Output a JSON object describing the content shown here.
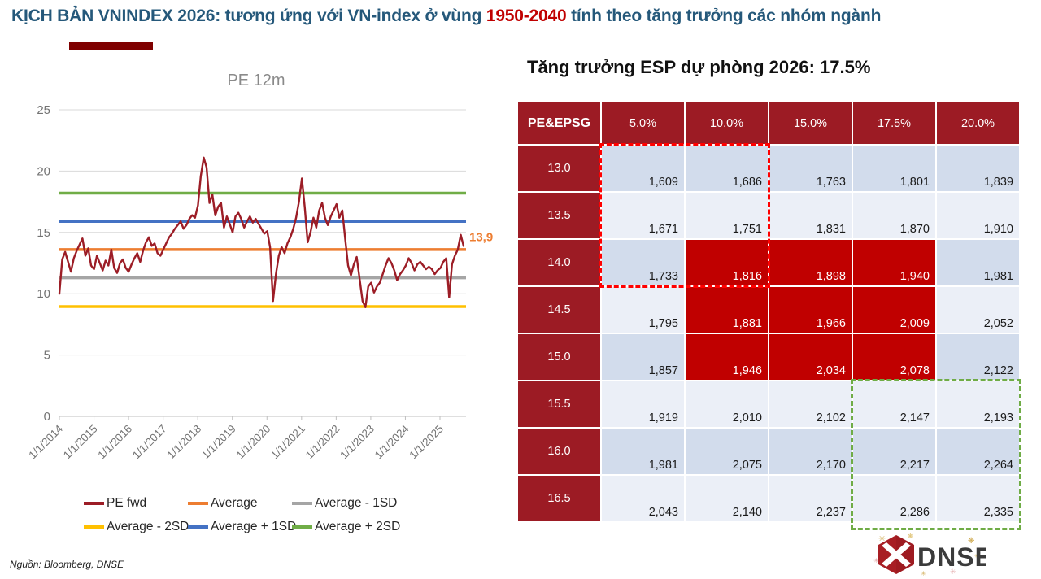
{
  "colors": {
    "title_navy": "#25587A",
    "accent_red": "#C00000",
    "maroon_bar": "#7F0000",
    "table_header_bg": "#9C1B24",
    "table_highlight_bg": "#C00000",
    "row_dark": "#D2DCEC",
    "row_light": "#EBEFF7",
    "red_dash": "#FF0000",
    "green_dash": "#6FAC46"
  },
  "page_title": {
    "part1": "KỊCH BẢN VNINDEX 2026: tương ứng với VN-index ở vùng ",
    "highlight": "1950-2040",
    "part2": " tính theo tăng trưởng các nhóm ngành"
  },
  "chart_data": {
    "type": "line",
    "title": "PE 12m",
    "ylim": [
      0,
      25
    ],
    "y_ticks": [
      0,
      5,
      10,
      15,
      20,
      25
    ],
    "grid": true,
    "legend_position": "bottom",
    "x_tick_labels": [
      "1/1/2014",
      "1/1/2015",
      "1/1/2016",
      "1/1/2017",
      "1/1/2018",
      "1/1/2019",
      "1/1/2020",
      "1/1/2021",
      "1/1/2022",
      "1/1/2023",
      "1/1/2024",
      "1/1/2025"
    ],
    "pe_series": {
      "name": "PE fwd",
      "color": "#9C1D26",
      "start": "1/1/2014",
      "interval": "monthly",
      "values": [
        10.0,
        12.8,
        13.4,
        12.6,
        11.8,
        12.9,
        13.5,
        14.0,
        14.5,
        13.1,
        13.7,
        12.3,
        12.0,
        13.1,
        12.5,
        11.9,
        12.7,
        12.3,
        13.6,
        12.1,
        11.7,
        12.5,
        12.8,
        12.1,
        11.8,
        12.4,
        12.9,
        13.3,
        12.6,
        13.5,
        14.2,
        14.6,
        13.9,
        14.1,
        13.3,
        13.1,
        13.6,
        14.1,
        14.6,
        14.9,
        15.3,
        15.6,
        15.9,
        15.3,
        15.6,
        16.1,
        16.4,
        16.2,
        17.2,
        19.6,
        21.1,
        20.3,
        17.4,
        18.1,
        16.4,
        17.1,
        17.4,
        15.4,
        16.3,
        15.7,
        15.0,
        16.3,
        16.6,
        16.1,
        15.4,
        15.9,
        16.3,
        15.8,
        16.1,
        15.7,
        15.3,
        14.9,
        15.1,
        13.8,
        9.4,
        11.6,
        13.1,
        13.8,
        13.3,
        14.1,
        14.6,
        15.3,
        16.2,
        17.5,
        19.4,
        17.0,
        14.2,
        15.0,
        16.2,
        15.4,
        16.8,
        17.4,
        16.2,
        15.6,
        16.3,
        16.8,
        17.3,
        16.2,
        16.8,
        14.5,
        12.3,
        11.5,
        12.4,
        13.0,
        11.2,
        9.4,
        8.9,
        10.6,
        10.9,
        10.1,
        10.6,
        10.9,
        11.6,
        12.3,
        12.9,
        12.5,
        11.9,
        11.1,
        11.6,
        11.9,
        12.3,
        12.9,
        12.5,
        11.9,
        12.4,
        12.6,
        12.3,
        12.0,
        12.2,
        12.0,
        11.6,
        11.9,
        12.1,
        12.6,
        12.9,
        9.7,
        12.4,
        13.1,
        13.6,
        14.8,
        13.9
      ]
    },
    "reference_lines": [
      {
        "name": "Average",
        "color": "#ED7D31",
        "value": 13.6
      },
      {
        "name": "Average - 1SD",
        "color": "#A5A5A5",
        "value": 11.3
      },
      {
        "name": "Average - 2SD",
        "color": "#FFC000",
        "value": 8.95
      },
      {
        "name": "Average + 1SD",
        "color": "#4472C4",
        "value": 15.9
      },
      {
        "name": "Average + 2SD",
        "color": "#70AD47",
        "value": 18.2
      }
    ],
    "end_label": "13,9",
    "end_label_color": "#ED7D31",
    "legend": [
      {
        "label": "PE fwd",
        "color": "#9C1D26"
      },
      {
        "label": "Average",
        "color": "#ED7D31"
      },
      {
        "label": "Average - 1SD",
        "color": "#A5A5A5"
      },
      {
        "label": "Average - 2SD",
        "color": "#FFC000"
      },
      {
        "label": "Average + 1SD",
        "color": "#4472C4"
      },
      {
        "label": "Average + 2SD",
        "color": "#70AD47"
      }
    ]
  },
  "esp_table": {
    "title": "Tăng trưởng ESP dự phòng 2026: 17.5%",
    "corner_header": "PE&EPSG",
    "col_headers": [
      "5.0%",
      "10.0%",
      "15.0%",
      "17.5%",
      "20.0%"
    ],
    "rows": [
      {
        "label": "13.0",
        "values": [
          "1,609",
          "1,686",
          "1,763",
          "1,801",
          "1,839"
        ]
      },
      {
        "label": "13.5",
        "values": [
          "1,671",
          "1,751",
          "1,831",
          "1,870",
          "1,910"
        ]
      },
      {
        "label": "14.0",
        "values": [
          "1,733",
          "1,816",
          "1,898",
          "1,940",
          "1,981"
        ]
      },
      {
        "label": "14.5",
        "values": [
          "1,795",
          "1,881",
          "1,966",
          "2,009",
          "2,052"
        ]
      },
      {
        "label": "15.0",
        "values": [
          "1,857",
          "1,946",
          "2,034",
          "2,078",
          "2,122"
        ]
      },
      {
        "label": "15.5",
        "values": [
          "1,919",
          "2,010",
          "2,102",
          "2,147",
          "2,193"
        ]
      },
      {
        "label": "16.0",
        "values": [
          "1,981",
          "2,075",
          "2,170",
          "2,217",
          "2,264"
        ]
      },
      {
        "label": "16.5",
        "values": [
          "2,043",
          "2,140",
          "2,237",
          "2,286",
          "2,335"
        ]
      }
    ],
    "highlights": {
      "red_cells": {
        "rows": [
          "14.0",
          "14.5",
          "15.0"
        ],
        "cols": [
          "10.0%",
          "15.0%",
          "17.5%"
        ],
        "color": "#C00000"
      },
      "red_dash_box": {
        "rows": [
          "13.0",
          "13.5",
          "14.0"
        ],
        "cols": [
          "5.0%",
          "10.0%"
        ],
        "color": "#FF0000"
      },
      "green_dash_box": {
        "rows": [
          "15.5",
          "16.0",
          "16.5"
        ],
        "cols": [
          "17.5%",
          "20.0%"
        ],
        "color": "#6FAC46"
      }
    }
  },
  "footer": {
    "source": "Nguồn: Bloomberg, DNSE",
    "logo_text": "DNSE"
  }
}
